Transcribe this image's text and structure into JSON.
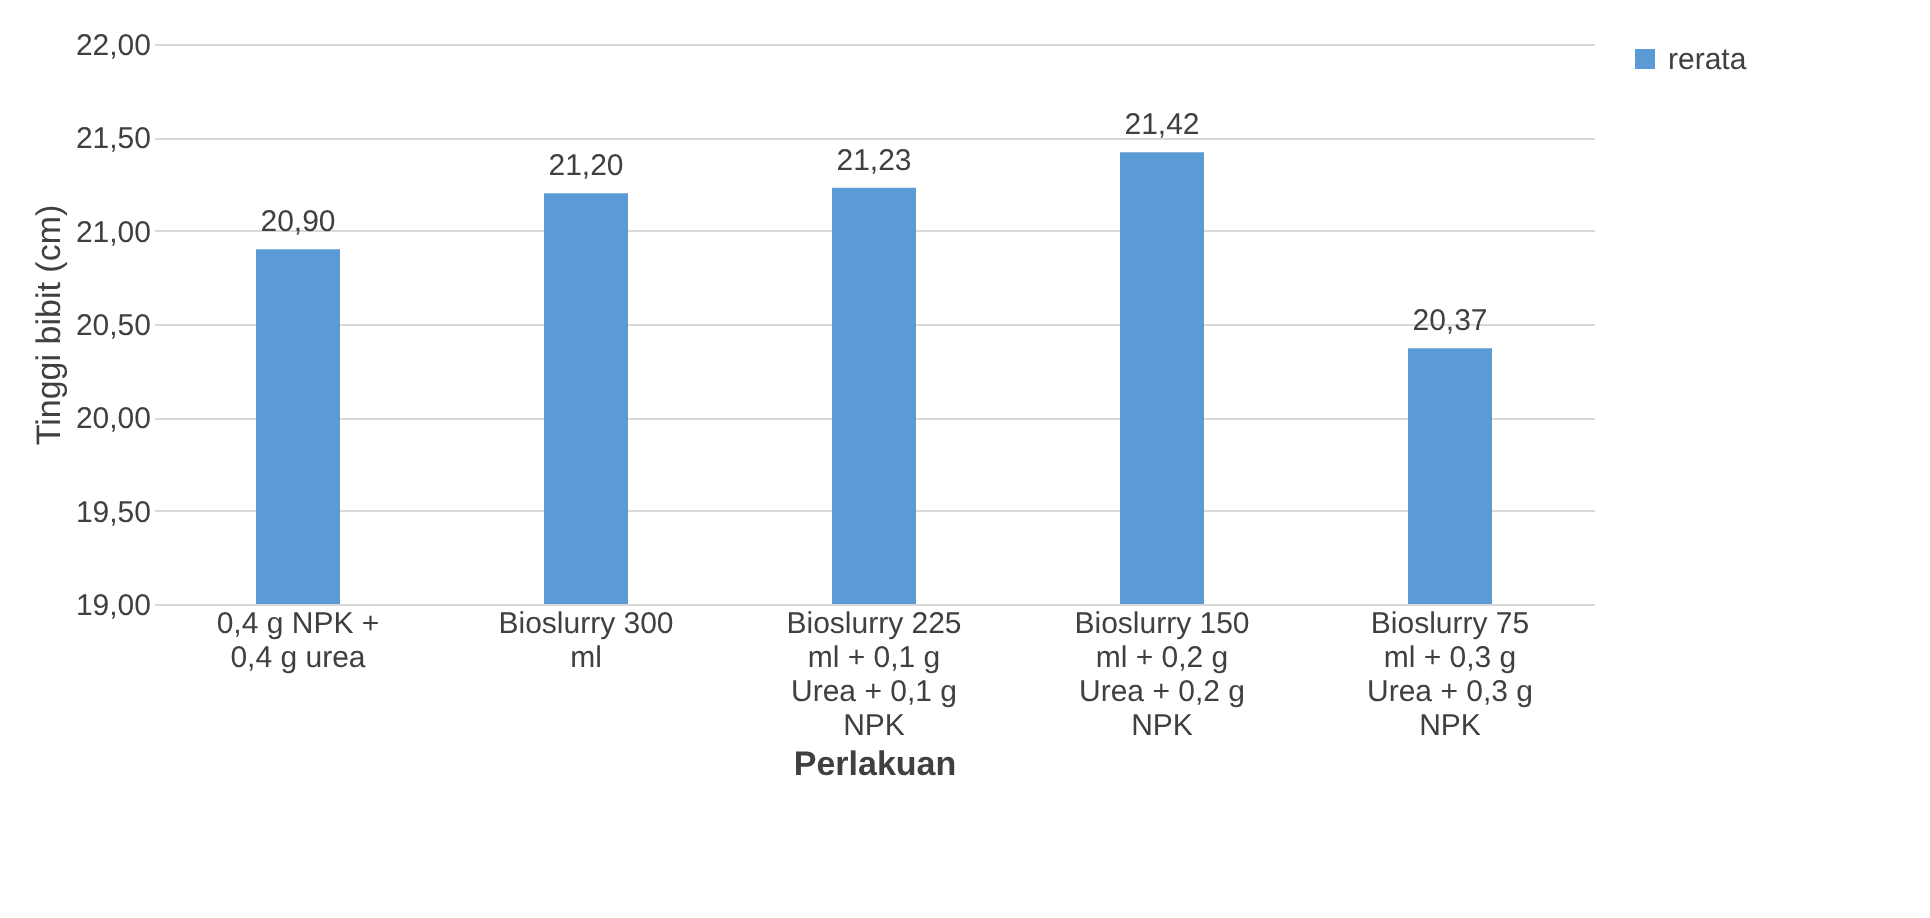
{
  "chart_data": {
    "type": "bar",
    "xlabel": "Perlakuan",
    "ylabel": "Tinggi bibit (cm)",
    "categories": [
      "0,4 g NPK + 0,4 g urea",
      "Bioslurry 300 ml",
      "Bioslurry 225 ml + 0,1 g Urea + 0,1 g NPK",
      "Bioslurry 150 ml + 0,2 g Urea + 0,2 g NPK",
      "Bioslurry 75 ml + 0,3 g Urea + 0,3 g NPK"
    ],
    "series": [
      {
        "name": "rerata",
        "color": "#5b9bd5",
        "values": [
          20.9,
          21.2,
          21.23,
          21.42,
          20.37
        ],
        "value_labels": [
          "20,90",
          "21,20",
          "21,23",
          "21,42",
          "20,37"
        ]
      }
    ],
    "ylim": [
      19,
      22
    ],
    "yticks": [
      {
        "value": 19,
        "label": "19,00"
      },
      {
        "value": 19.5,
        "label": "19,50"
      },
      {
        "value": 20,
        "label": "20,00"
      },
      {
        "value": 20.5,
        "label": "20,50"
      },
      {
        "value": 21,
        "label": "21,00"
      },
      {
        "value": 21.5,
        "label": "21,50"
      },
      {
        "value": 22,
        "label": "22,00"
      }
    ],
    "grid": "y",
    "legend": "right"
  }
}
